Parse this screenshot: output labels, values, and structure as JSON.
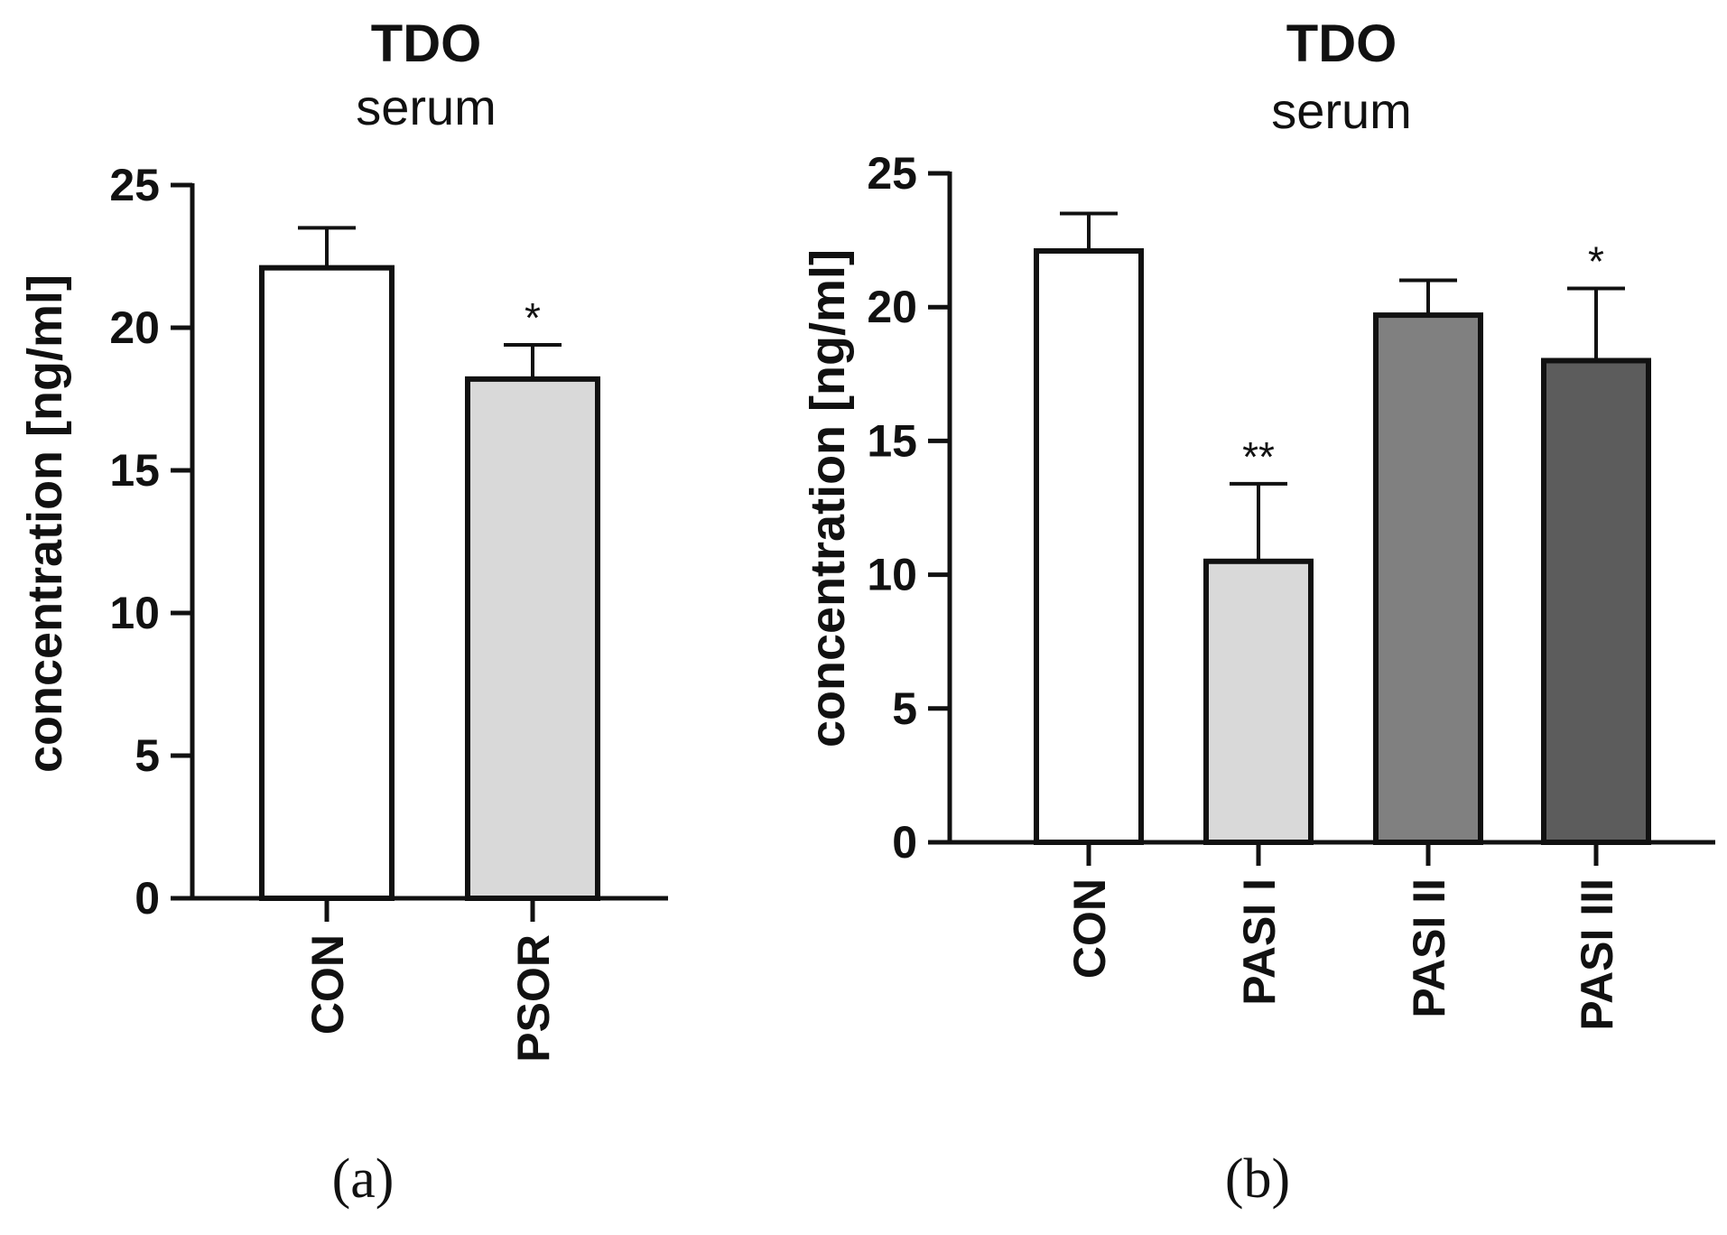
{
  "chart_data": [
    {
      "type": "bar",
      "panel_label": "(a)",
      "title": "TDO",
      "subtitle": "serum",
      "xlabel": "",
      "ylabel": "concentration [ng/ml]",
      "ylim": [
        0,
        25
      ],
      "yticks": [
        0,
        5,
        10,
        15,
        20,
        25
      ],
      "categories": [
        "CON",
        "PSOR"
      ],
      "values": [
        22.1,
        18.2
      ],
      "errors": [
        1.4,
        1.2
      ],
      "significance": [
        "",
        "*"
      ],
      "colors": [
        "#ffffff",
        "#d9d9d9"
      ]
    },
    {
      "type": "bar",
      "panel_label": "(b)",
      "title": "TDO",
      "subtitle": "serum",
      "xlabel": "",
      "ylabel": "concentration [ng/ml]",
      "ylim": [
        0,
        25
      ],
      "yticks": [
        0,
        5,
        10,
        15,
        20,
        25
      ],
      "categories": [
        "CON",
        "PASI I",
        "PASI II",
        "PASI III"
      ],
      "values": [
        22.1,
        10.5,
        19.7,
        18.0
      ],
      "errors": [
        1.4,
        2.9,
        1.3,
        2.7
      ],
      "significance": [
        "",
        "**",
        "",
        "*"
      ],
      "colors": [
        "#ffffff",
        "#d9d9d9",
        "#808080",
        "#5c5c5c"
      ]
    }
  ]
}
